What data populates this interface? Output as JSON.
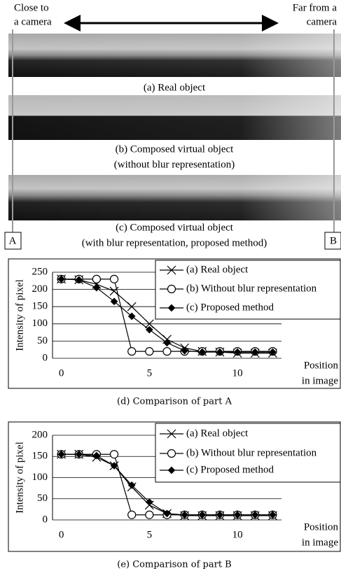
{
  "header": {
    "left": [
      "Close to",
      "a camera"
    ],
    "right": [
      "Far from a",
      "camera"
    ]
  },
  "panels": [
    {
      "caption": [
        "(a) Real object"
      ]
    },
    {
      "caption": [
        "(b) Composed virtual object",
        "(without blur representation)"
      ]
    },
    {
      "caption": [
        "(c) Composed virtual object",
        "(with blur representation, proposed method)"
      ]
    }
  ],
  "markers": {
    "left": "A",
    "right": "B"
  },
  "chart_data": [
    {
      "type": "line",
      "caption": "(d) Comparison of part A",
      "y_label": "Intensity of pixel",
      "x_label": [
        "Position",
        "in image"
      ],
      "x": [
        0,
        1,
        2,
        3,
        4,
        5,
        6,
        7,
        8,
        9,
        10,
        11,
        12
      ],
      "xlim": [
        -0.5,
        12.5
      ],
      "xticks": [
        0,
        5,
        10
      ],
      "ylim": [
        0,
        250
      ],
      "yticks": [
        0,
        50,
        100,
        150,
        200,
        250
      ],
      "grid": true,
      "series": [
        {
          "name": "(a) Real object",
          "color": "#000000",
          "marker": "x",
          "values": [
            230,
            228,
            215,
            195,
            150,
            100,
            55,
            30,
            20,
            18,
            15,
            15,
            15
          ]
        },
        {
          "name": "(b) Without blur representation",
          "color": "#000000",
          "marker": "circle",
          "values": [
            230,
            230,
            230,
            230,
            20,
            20,
            20,
            20,
            20,
            20,
            20,
            20,
            20
          ]
        },
        {
          "name": "(c) Proposed method",
          "color": "#000000",
          "marker": "diamond",
          "values": [
            230,
            228,
            205,
            165,
            122,
            83,
            45,
            22,
            18,
            18,
            18,
            18,
            18
          ]
        }
      ]
    },
    {
      "type": "line",
      "caption": "(e) Comparison of part B",
      "y_label": "Intensity of pixel",
      "x_label": [
        "Position",
        "in image"
      ],
      "x": [
        0,
        1,
        2,
        3,
        4,
        5,
        6,
        7,
        8,
        9,
        10,
        11,
        12
      ],
      "xlim": [
        -0.5,
        12.5
      ],
      "xticks": [
        0,
        5,
        10
      ],
      "ylim": [
        0,
        200
      ],
      "yticks": [
        0,
        50,
        100,
        150,
        200
      ],
      "grid": true,
      "series": [
        {
          "name": "(a) Real object",
          "color": "#000000",
          "marker": "x",
          "values": [
            155,
            155,
            148,
            128,
            78,
            35,
            15,
            10,
            10,
            10,
            10,
            10,
            10
          ]
        },
        {
          "name": "(b) Without blur representation",
          "color": "#000000",
          "marker": "circle",
          "values": [
            155,
            155,
            155,
            155,
            12,
            12,
            12,
            12,
            12,
            12,
            12,
            12,
            12
          ]
        },
        {
          "name": "(c) Proposed method",
          "color": "#000000",
          "marker": "diamond",
          "values": [
            155,
            155,
            152,
            128,
            82,
            42,
            15,
            12,
            12,
            12,
            12,
            12,
            12
          ]
        }
      ]
    }
  ]
}
